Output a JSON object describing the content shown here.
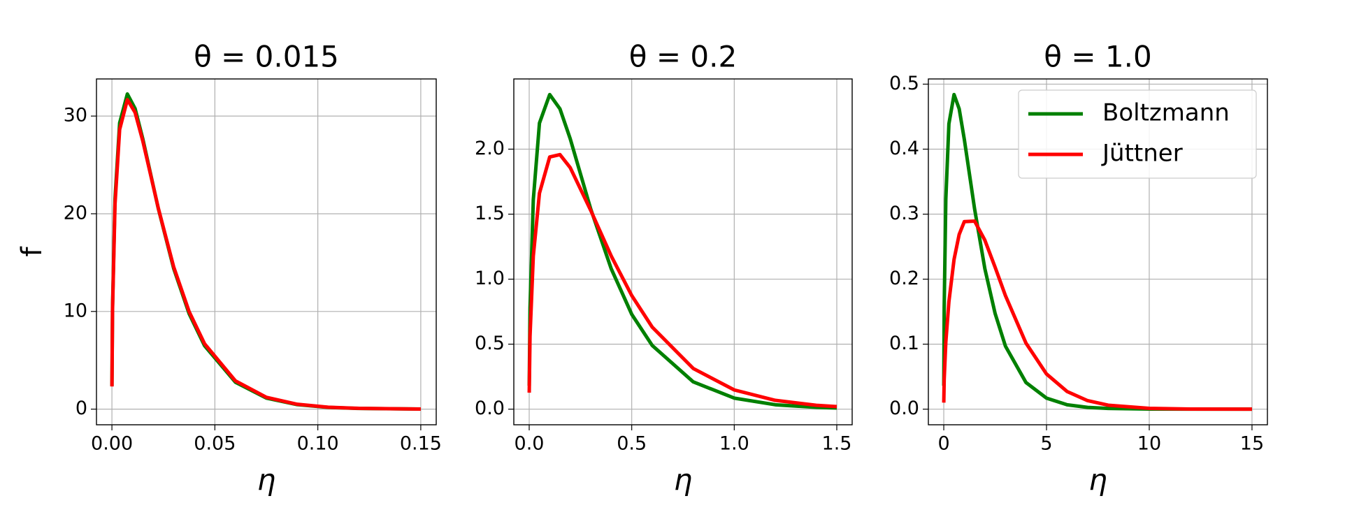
{
  "chart_data": [
    {
      "type": "line",
      "title": "θ = 0.015",
      "xlabel": "η",
      "ylabel": "f",
      "x": [
        1.5e-05,
        0.0003,
        0.0015,
        0.00375,
        0.0075,
        0.01125,
        0.015,
        0.0225,
        0.03,
        0.0375,
        0.045,
        0.06,
        0.075,
        0.09,
        0.105,
        0.12,
        0.15
      ],
      "series": [
        {
          "name": "Boltzmann",
          "color": "#008000",
          "values": [
            2.38,
            10.43,
            21.53,
            29.29,
            32.26,
            30.77,
            27.67,
            20.56,
            14.4,
            9.77,
            6.49,
            2.75,
            1.13,
            0.46,
            0.18,
            0.07,
            0.01
          ]
        },
        {
          "name": "Jüttner",
          "color": "#ff0000",
          "values": [
            2.32,
            10.15,
            20.97,
            28.62,
            31.68,
            30.37,
            27.45,
            20.6,
            14.56,
            9.98,
            6.69,
            2.89,
            1.21,
            0.5,
            0.2,
            0.08,
            0.01
          ]
        }
      ],
      "xlim": [
        -0.0075,
        0.1575
      ],
      "ylim": [
        -1.6,
        33.8
      ],
      "xticks": [
        {
          "value": 0,
          "label": "0.00"
        },
        0.05,
        {
          "value": 0.1,
          "label": "0.10"
        },
        0.15
      ],
      "yticks": [
        0,
        10,
        20,
        30
      ],
      "grid": true
    },
    {
      "type": "line",
      "title": "θ = 0.2",
      "xlabel": "η",
      "x": [
        0.0002,
        0.004,
        0.02,
        0.05,
        0.1,
        0.15,
        0.2,
        0.3,
        0.4,
        0.5,
        0.6,
        0.8,
        1.0,
        1.2,
        1.4,
        1.5
      ],
      "series": [
        {
          "name": "Boltzmann",
          "color": "#008000",
          "values": [
            0.18,
            0.78,
            1.61,
            2.2,
            2.42,
            2.31,
            2.08,
            1.54,
            1.08,
            0.73,
            0.49,
            0.21,
            0.085,
            0.034,
            0.014,
            0.009
          ]
        },
        {
          "name": "Jüttner",
          "color": "#ff0000",
          "values": [
            0.127,
            0.559,
            1.177,
            1.661,
            1.94,
            1.958,
            1.858,
            1.529,
            1.178,
            0.874,
            0.631,
            0.313,
            0.148,
            0.068,
            0.03,
            0.02
          ]
        }
      ],
      "xlim": [
        -0.075,
        1.575
      ],
      "ylim": [
        -0.12,
        2.54
      ],
      "xticks": [
        {
          "value": 0,
          "label": "0.0"
        },
        0.5,
        {
          "value": 1,
          "label": "1.0"
        },
        1.5
      ],
      "yticks": [
        {
          "value": 0,
          "label": "0.0"
        },
        0.5,
        {
          "value": 1,
          "label": "1.0"
        },
        1.5,
        {
          "value": 2,
          "label": "2.0"
        }
      ],
      "grid": true
    },
    {
      "type": "line",
      "title": "θ = 1.0",
      "xlabel": "η",
      "x": [
        0.001,
        0.02,
        0.1,
        0.25,
        0.5,
        0.75,
        1,
        1.5,
        2,
        2.5,
        3,
        4,
        5,
        6,
        7,
        8,
        10,
        12,
        15
      ],
      "series": [
        {
          "name": "Boltzmann",
          "color": "#008000",
          "values": [
            0.036,
            0.156,
            0.323,
            0.439,
            0.484,
            0.462,
            0.415,
            0.308,
            0.216,
            0.147,
            0.097,
            0.041,
            0.017,
            0.0068,
            0.0027,
            0.0011,
            0.0002,
            2e-05,
            0
          ]
        },
        {
          "name": "Jüttner",
          "color": "#ff0000",
          "values": [
            0.0101,
            0.0455,
            0.1033,
            0.1653,
            0.2303,
            0.2688,
            0.2885,
            0.2893,
            0.2599,
            0.2182,
            0.1747,
            0.1016,
            0.0541,
            0.0272,
            0.0131,
            0.0061,
            0.0012,
            0.0002,
            2e-05
          ]
        }
      ],
      "xlim": [
        -0.75,
        15.75
      ],
      "ylim": [
        -0.024,
        0.508
      ],
      "xticks": [
        0,
        5,
        10,
        15
      ],
      "yticks": [
        {
          "value": 0,
          "label": "0.0"
        },
        0.1,
        0.2,
        0.3,
        0.4,
        0.5
      ],
      "grid": true,
      "legend": "upper right"
    }
  ]
}
